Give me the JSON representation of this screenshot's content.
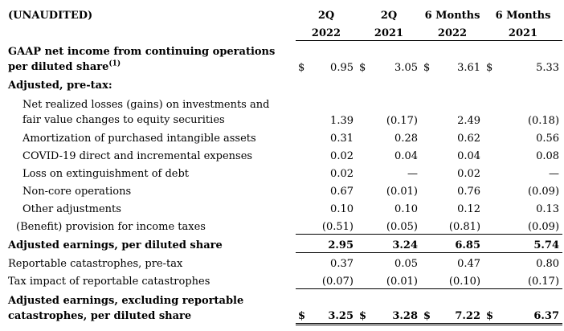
{
  "header": {
    "label": "(UNAUDITED)",
    "columns": [
      {
        "line1": "2Q",
        "line2": "2022"
      },
      {
        "line1": "2Q",
        "line2": "2021"
      },
      {
        "line1": "6 Months",
        "line2": "2022"
      },
      {
        "line1": "6 Months",
        "line2": "2021"
      }
    ]
  },
  "currency": "$",
  "rows": [
    {
      "label": "GAAP net income from continuing operations per diluted share",
      "sup": "(1)",
      "values": [
        "0.95",
        "3.05",
        "3.61",
        "5.33"
      ]
    },
    {
      "label": "Adjusted, pre-tax:"
    },
    {
      "label": "Net realized losses (gains) on investments and fair value changes to equity securities",
      "values": [
        "1.39",
        "(0.17)",
        "2.49",
        "(0.18)"
      ]
    },
    {
      "label": "Amortization of purchased intangible assets",
      "values": [
        "0.31",
        "0.28",
        "0.62",
        "0.56"
      ]
    },
    {
      "label": "COVID-19 direct and incremental expenses",
      "values": [
        "0.02",
        "0.04",
        "0.04",
        "0.08"
      ]
    },
    {
      "label": "Loss on extinguishment of debt",
      "values": [
        "0.02",
        "—",
        "0.02",
        "—"
      ]
    },
    {
      "label": "Non-core operations",
      "values": [
        "0.67",
        "(0.01)",
        "0.76",
        "(0.09)"
      ]
    },
    {
      "label": "Other adjustments",
      "values": [
        "0.10",
        "0.10",
        "0.12",
        "0.13"
      ]
    },
    {
      "label": "(Benefit) provision for income taxes",
      "values": [
        "(0.51)",
        "(0.05)",
        "(0.81)",
        "(0.09)"
      ]
    },
    {
      "label": "Adjusted earnings, per diluted share",
      "values": [
        "2.95",
        "3.24",
        "6.85",
        "5.74"
      ]
    },
    {
      "label": "Reportable catastrophes, pre-tax",
      "values": [
        "0.37",
        "0.05",
        "0.47",
        "0.80"
      ]
    },
    {
      "label": "Tax impact of reportable catastrophes",
      "values": [
        "(0.07)",
        "(0.01)",
        "(0.10)",
        "(0.17)"
      ]
    },
    {
      "label": "Adjusted earnings, excluding reportable catastrophes, per diluted share",
      "values": [
        "3.25",
        "3.28",
        "7.22",
        "6.37"
      ]
    }
  ]
}
